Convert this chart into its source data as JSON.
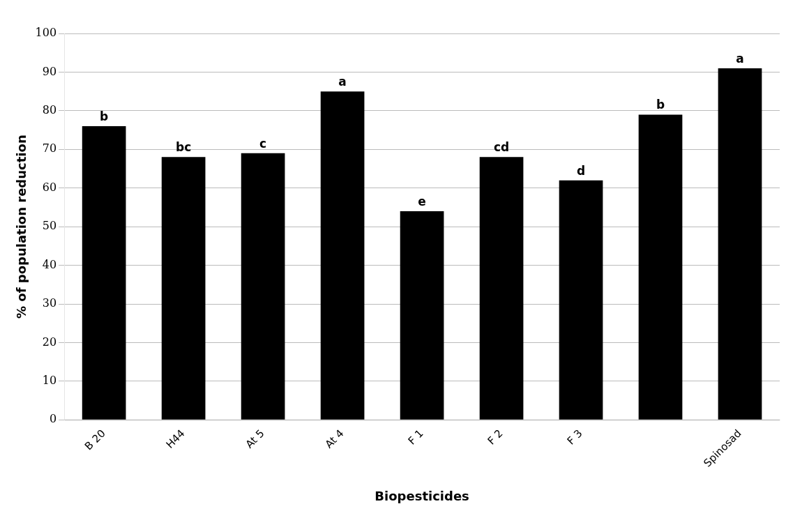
{
  "chart_data": {
    "type": "bar",
    "xlabel": "Biopesticides",
    "ylabel": "% of population reduction",
    "categories": [
      "B 20",
      "H44",
      "At 5",
      "At 4",
      "F 1",
      "F 2",
      "F 3",
      null,
      "Spinosad"
    ],
    "values": [
      76,
      68,
      69,
      85,
      54,
      68,
      62,
      79,
      91
    ],
    "color": "#000000",
    "ylim": [
      0,
      100
    ],
    "yticks": [
      0,
      10,
      20,
      30,
      40,
      50,
      60,
      70,
      80,
      90,
      100
    ],
    "grid": "y",
    "legend": false,
    "annotations": [
      {
        "text": "b",
        "x": "B 20",
        "y": 76
      },
      {
        "text": "bc",
        "x": "H44",
        "y": 68
      },
      {
        "text": "c",
        "x": "At 5",
        "y": 69
      },
      {
        "text": "a",
        "x": "At 4",
        "y": 85
      },
      {
        "text": "e",
        "x": "F 1",
        "y": 54
      },
      {
        "text": "cd",
        "x": "F 2",
        "y": 68
      },
      {
        "text": "d",
        "x": "F 3",
        "y": 62
      },
      {
        "text": "b",
        "y": 79
      },
      {
        "text": "a",
        "x": "Spinosad",
        "y": 91
      }
    ]
  }
}
